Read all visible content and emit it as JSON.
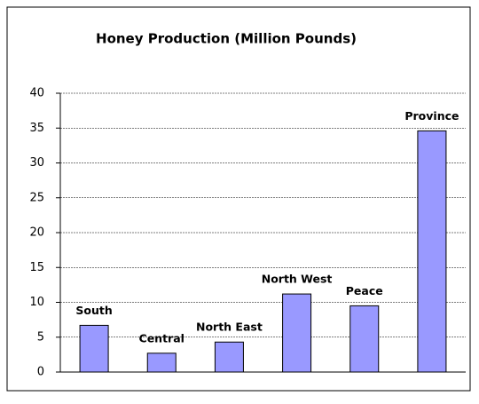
{
  "chart_data": {
    "type": "bar",
    "title": "Honey Production (Million Pounds)",
    "categories": [
      "South",
      "Central",
      "North East",
      "North West",
      "Peace",
      "Province"
    ],
    "values": [
      6.7,
      2.7,
      4.3,
      11.2,
      9.5,
      34.6
    ],
    "color": "#9999ff",
    "ylim": [
      0,
      40
    ],
    "yticks": [
      0,
      5,
      10,
      15,
      20,
      25,
      30,
      35,
      40
    ],
    "grid": true
  }
}
